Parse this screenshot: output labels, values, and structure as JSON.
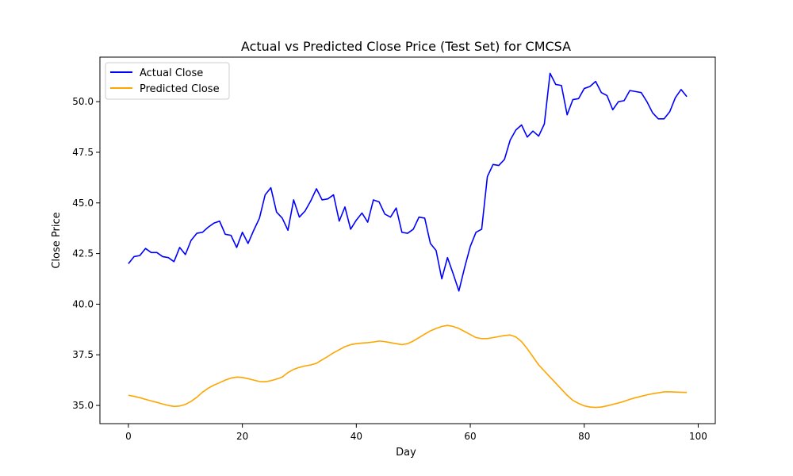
{
  "chart_data": {
    "type": "line",
    "title": "Actual vs Predicted Close Price (Test Set) for CMCSA",
    "xlabel": "Day",
    "ylabel": "Close Price",
    "xlim": [
      -5,
      103
    ],
    "ylim": [
      34.1,
      52.2
    ],
    "xticks": [
      0,
      20,
      40,
      60,
      80,
      100
    ],
    "xtick_labels": [
      "0",
      "20",
      "40",
      "60",
      "80",
      "100"
    ],
    "yticks": [
      35.0,
      37.5,
      40.0,
      42.5,
      45.0,
      47.5,
      50.0
    ],
    "ytick_labels": [
      "35.0",
      "37.5",
      "40.0",
      "42.5",
      "45.0",
      "47.5",
      "50.0"
    ],
    "grid": false,
    "legend_position": "top-left",
    "x": [
      0,
      1,
      2,
      3,
      4,
      5,
      6,
      7,
      8,
      9,
      10,
      11,
      12,
      13,
      14,
      15,
      16,
      17,
      18,
      19,
      20,
      21,
      22,
      23,
      24,
      25,
      26,
      27,
      28,
      29,
      30,
      31,
      32,
      33,
      34,
      35,
      36,
      37,
      38,
      39,
      40,
      41,
      42,
      43,
      44,
      45,
      46,
      47,
      48,
      49,
      50,
      51,
      52,
      53,
      54,
      55,
      56,
      57,
      58,
      59,
      60,
      61,
      62,
      63,
      64,
      65,
      66,
      67,
      68,
      69,
      70,
      71,
      72,
      73,
      74,
      75,
      76,
      77,
      78,
      79,
      80,
      81,
      82,
      83,
      84,
      85,
      86,
      87,
      88,
      89,
      90,
      91,
      92,
      93,
      94,
      95,
      96,
      97,
      98
    ],
    "series": [
      {
        "name": "Actual Close",
        "color": "#0000ff",
        "values": [
          42.0,
          42.35,
          42.4,
          42.75,
          42.55,
          42.55,
          42.35,
          42.3,
          42.1,
          42.8,
          42.45,
          43.15,
          43.5,
          43.55,
          43.8,
          44.0,
          44.1,
          43.45,
          43.4,
          42.8,
          43.55,
          43.0,
          43.65,
          44.25,
          45.4,
          45.75,
          44.55,
          44.25,
          43.65,
          45.15,
          44.3,
          44.6,
          45.1,
          45.7,
          45.15,
          45.2,
          45.4,
          44.1,
          44.8,
          43.7,
          44.15,
          44.5,
          44.05,
          45.15,
          45.05,
          44.45,
          44.3,
          44.75,
          43.55,
          43.5,
          43.7,
          44.3,
          44.25,
          43.0,
          42.65,
          41.25,
          42.3,
          41.5,
          40.65,
          41.8,
          42.85,
          43.55,
          43.7,
          46.3,
          46.9,
          46.85,
          47.15,
          48.1,
          48.6,
          48.85,
          48.25,
          48.55,
          48.3,
          48.9,
          51.4,
          50.85,
          50.8,
          49.35,
          50.1,
          50.15,
          50.65,
          50.75,
          51.0,
          50.45,
          50.3,
          49.6,
          50.0,
          50.05,
          50.55,
          50.5,
          50.45,
          50.0,
          49.45,
          49.15,
          49.15,
          49.5,
          50.2,
          50.6,
          50.25
        ]
      },
      {
        "name": "Predicted Close",
        "color": "#ffa500",
        "values": [
          35.5,
          35.45,
          35.38,
          35.3,
          35.22,
          35.15,
          35.07,
          35.0,
          34.95,
          34.97,
          35.05,
          35.2,
          35.4,
          35.65,
          35.85,
          36.0,
          36.12,
          36.25,
          36.35,
          36.4,
          36.38,
          36.32,
          36.25,
          36.18,
          36.17,
          36.22,
          36.3,
          36.4,
          36.62,
          36.78,
          36.88,
          36.95,
          37.0,
          37.08,
          37.25,
          37.42,
          37.6,
          37.75,
          37.9,
          38.0,
          38.05,
          38.08,
          38.1,
          38.13,
          38.18,
          38.15,
          38.1,
          38.05,
          38.0,
          38.05,
          38.18,
          38.35,
          38.52,
          38.68,
          38.8,
          38.9,
          38.95,
          38.9,
          38.8,
          38.65,
          38.5,
          38.35,
          38.3,
          38.3,
          38.35,
          38.4,
          38.45,
          38.48,
          38.38,
          38.15,
          37.8,
          37.4,
          37.0,
          36.7,
          36.4,
          36.1,
          35.8,
          35.5,
          35.25,
          35.1,
          34.98,
          34.92,
          34.9,
          34.92,
          34.98,
          35.05,
          35.12,
          35.2,
          35.3,
          35.38,
          35.45,
          35.52,
          35.58,
          35.62,
          35.67,
          35.67,
          35.66,
          35.65,
          35.64
        ]
      }
    ]
  }
}
